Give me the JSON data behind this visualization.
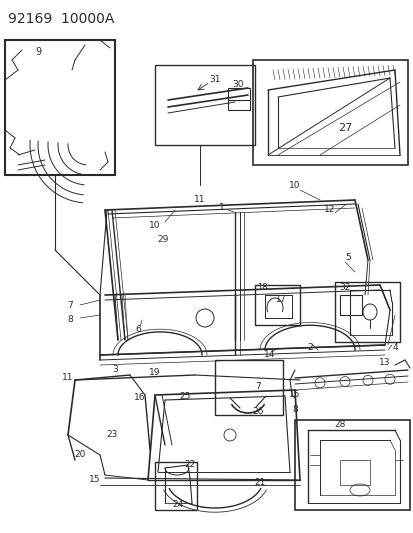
{
  "title": "92169  10000A",
  "bg_color": "#ffffff",
  "line_color": "#2a2a2a",
  "title_fontsize": 10,
  "label_fontsize": 6.5,
  "fig_width": 4.14,
  "fig_height": 5.33,
  "dpi": 100
}
